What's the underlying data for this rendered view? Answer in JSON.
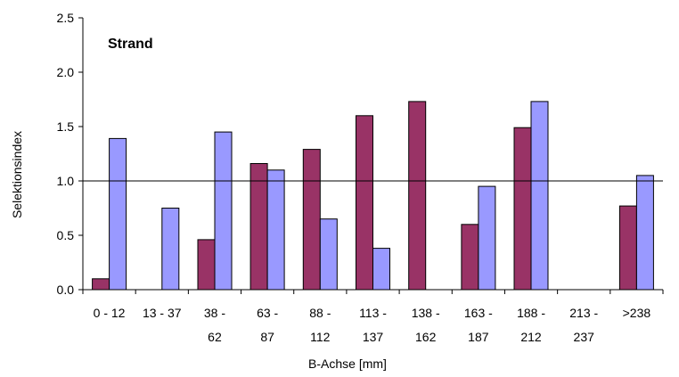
{
  "chart_data": {
    "type": "bar",
    "title": "Strand",
    "xlabel": "B-Achse [mm]",
    "ylabel": "Selektionsindex",
    "ylim": [
      0,
      2.5
    ],
    "yticks": [
      "0.0",
      "0.5",
      "1.0",
      "1.5",
      "2.0",
      "2.5"
    ],
    "reference_line": 1.0,
    "grid": false,
    "legend": "none",
    "categories": [
      [
        "0 - 12"
      ],
      [
        "13 - 37"
      ],
      [
        "38 -",
        "62"
      ],
      [
        "63 -",
        "87"
      ],
      [
        "88 -",
        "112"
      ],
      [
        "113 -",
        "137"
      ],
      [
        "138 -",
        "162"
      ],
      [
        "163 -",
        "187"
      ],
      [
        "188 -",
        "212"
      ],
      [
        "213 -",
        "237"
      ],
      [
        ">238"
      ]
    ],
    "series": [
      {
        "color": "#993366",
        "values": [
          0.1,
          0.0,
          0.46,
          1.16,
          1.29,
          1.6,
          1.73,
          0.6,
          1.49,
          0.0,
          0.77
        ]
      },
      {
        "color": "#9999FF",
        "values": [
          1.39,
          0.75,
          1.45,
          1.1,
          0.65,
          0.38,
          0.0,
          0.95,
          1.73,
          0.0,
          1.05
        ]
      }
    ]
  }
}
